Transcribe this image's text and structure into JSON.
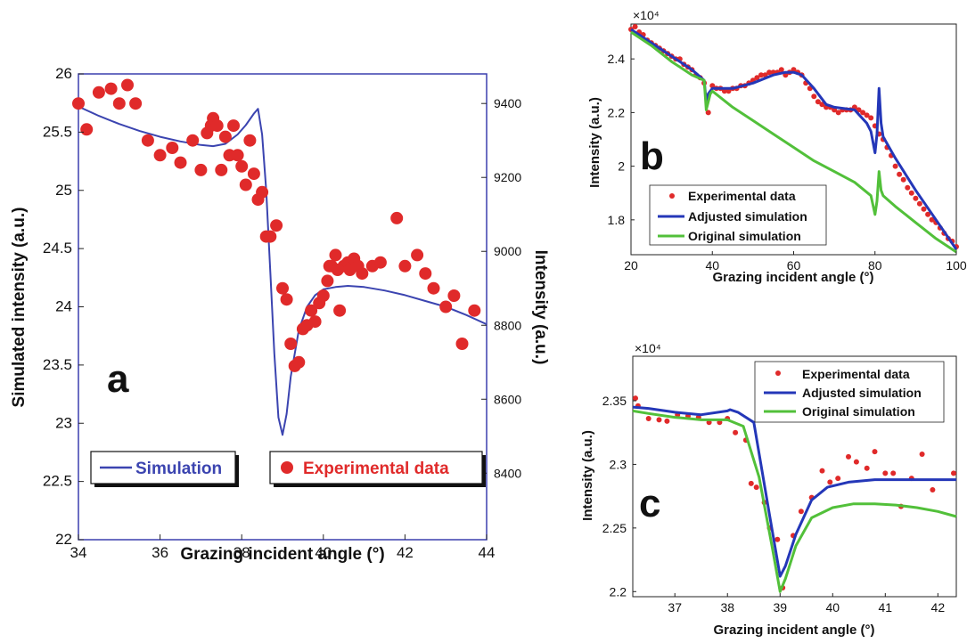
{
  "chart_data": [
    {
      "panel": "a",
      "type": "line+scatter",
      "xlabel": "Grazing incident angle (°)",
      "ylabel": "Simulated intensity (a.u.)",
      "y2label": "Intensity (a.u.)",
      "xlim": [
        34,
        44
      ],
      "ylim": [
        22,
        26
      ],
      "y2lim": [
        8220,
        9480
      ],
      "xticks": [
        34,
        36,
        38,
        40,
        42,
        44
      ],
      "yticks": [
        22,
        22.5,
        23,
        23.5,
        24,
        24.5,
        25,
        25.5,
        26
      ],
      "y2ticks": [
        8400,
        8600,
        8800,
        9000,
        9200,
        9400
      ],
      "legend": [
        "Simulation",
        "Experimental data"
      ],
      "colors": {
        "simulation": "#3b44b0",
        "experimental": "#e02a2a"
      },
      "series": [
        {
          "name": "Simulation",
          "axis": "left",
          "x": [
            34,
            34.5,
            35,
            35.5,
            36,
            36.5,
            37,
            37.3,
            37.6,
            37.9,
            38.1,
            38.3,
            38.4,
            38.5,
            38.6,
            38.7,
            38.8,
            38.9,
            39,
            39.1,
            39.2,
            39.4,
            39.6,
            39.8,
            40,
            40.3,
            40.6,
            41,
            41.5,
            42,
            42.5,
            43,
            43.5,
            44
          ],
          "y": [
            25.72,
            25.64,
            25.57,
            25.51,
            25.46,
            25.42,
            25.39,
            25.38,
            25.4,
            25.48,
            25.56,
            25.66,
            25.7,
            25.48,
            25.0,
            24.3,
            23.6,
            23.05,
            22.9,
            23.08,
            23.4,
            23.8,
            24.0,
            24.1,
            24.15,
            24.17,
            24.18,
            24.17,
            24.14,
            24.1,
            24.05,
            24.0,
            23.93,
            23.85
          ]
        },
        {
          "name": "Experimental data",
          "axis": "right",
          "x": [
            34,
            34.2,
            34.5,
            34.8,
            35.0,
            35.2,
            35.4,
            35.7,
            36.0,
            36.3,
            36.5,
            36.8,
            37.0,
            37.15,
            37.25,
            37.3,
            37.4,
            37.5,
            37.6,
            37.7,
            37.8,
            37.9,
            38.0,
            38.1,
            38.2,
            38.3,
            38.4,
            38.5,
            38.6,
            38.7,
            38.85,
            39.0,
            39.1,
            39.2,
            39.3,
            39.4,
            39.5,
            39.6,
            39.7,
            39.8,
            39.9,
            40.0,
            40.1,
            40.15,
            40.2,
            40.3,
            40.35,
            40.4,
            40.5,
            40.6,
            40.65,
            40.75,
            40.85,
            40.95,
            41.2,
            41.4,
            41.8,
            42.0,
            42.3,
            42.5,
            42.7,
            43.0,
            43.2,
            43.4,
            43.7
          ],
          "y": [
            9400,
            9330,
            9430,
            9440,
            9400,
            9450,
            9400,
            9300,
            9260,
            9280,
            9240,
            9300,
            9220,
            9320,
            9340,
            9360,
            9340,
            9220,
            9310,
            9260,
            9340,
            9260,
            9230,
            9180,
            9300,
            9210,
            9140,
            9160,
            9040,
            9040,
            9070,
            8900,
            8870,
            8750,
            8690,
            8700,
            8790,
            8800,
            8840,
            8810,
            8860,
            8880,
            8920,
            8960,
            8960,
            8990,
            8950,
            8840,
            8960,
            8970,
            8950,
            8980,
            8960,
            8940,
            8960,
            8970,
            9090,
            8960,
            8990,
            8940,
            8900,
            8850,
            8880,
            8750,
            8840
          ]
        }
      ],
      "annotation": "a"
    },
    {
      "panel": "b",
      "type": "line+scatter",
      "xlabel": "Grazing incident angle (°)",
      "ylabel": "Intensity (a.u.)",
      "scale_label": "×10⁴",
      "xlim": [
        20,
        100
      ],
      "ylim": [
        1.67,
        2.53
      ],
      "xticks": [
        20,
        40,
        60,
        80,
        100
      ],
      "yticks": [
        1.8,
        2,
        2.2,
        2.4
      ],
      "legend": [
        "Experimental data",
        "Adjusted simulation",
        "Original simulation"
      ],
      "colors": {
        "Experimental data": "#e02a2a",
        "Adjusted simulation": "#2437b8",
        "Original simulation": "#52c03a"
      },
      "series": [
        {
          "name": "Experimental data",
          "x": [
            20,
            21,
            22,
            23,
            24,
            25,
            26,
            27,
            28,
            29,
            30,
            31,
            32,
            33,
            34,
            35,
            36,
            37,
            38,
            39,
            40,
            41,
            42,
            43,
            44,
            45,
            46,
            47,
            48,
            49,
            50,
            51,
            52,
            53,
            54,
            55,
            56,
            57,
            58,
            59,
            60,
            61,
            62,
            63,
            64,
            65,
            66,
            67,
            68,
            69,
            70,
            71,
            72,
            73,
            74,
            75,
            76,
            77,
            78,
            79,
            80,
            81,
            82,
            83,
            84,
            85,
            86,
            87,
            88,
            89,
            90,
            91,
            92,
            93,
            94,
            95,
            96,
            97,
            98,
            99,
            100
          ],
          "y": [
            2.51,
            2.52,
            2.5,
            2.49,
            2.47,
            2.46,
            2.45,
            2.44,
            2.43,
            2.42,
            2.41,
            2.4,
            2.4,
            2.38,
            2.37,
            2.36,
            2.34,
            2.33,
            2.31,
            2.2,
            2.3,
            2.29,
            2.29,
            2.28,
            2.28,
            2.29,
            2.29,
            2.3,
            2.3,
            2.31,
            2.32,
            2.33,
            2.34,
            2.34,
            2.35,
            2.35,
            2.35,
            2.36,
            2.34,
            2.35,
            2.36,
            2.35,
            2.34,
            2.31,
            2.29,
            2.26,
            2.24,
            2.23,
            2.22,
            2.22,
            2.21,
            2.2,
            2.21,
            2.21,
            2.21,
            2.22,
            2.21,
            2.2,
            2.19,
            2.18,
            2.15,
            2.12,
            2.1,
            2.07,
            2.04,
            2.0,
            1.97,
            1.95,
            1.92,
            1.9,
            1.88,
            1.86,
            1.84,
            1.82,
            1.8,
            1.79,
            1.77,
            1.75,
            1.73,
            1.72,
            1.7
          ]
        },
        {
          "name": "Adjusted simulation",
          "x": [
            20,
            25,
            30,
            35,
            38,
            38.5,
            39,
            39.5,
            40,
            45,
            50,
            55,
            58,
            60,
            62,
            65,
            68,
            70,
            75,
            78,
            79,
            80,
            80.5,
            81,
            81.5,
            82,
            85,
            90,
            95,
            100
          ],
          "y": [
            2.51,
            2.46,
            2.41,
            2.36,
            2.32,
            2.24,
            2.27,
            2.28,
            2.29,
            2.29,
            2.31,
            2.34,
            2.35,
            2.35,
            2.34,
            2.29,
            2.23,
            2.22,
            2.21,
            2.16,
            2.13,
            2.05,
            2.12,
            2.29,
            2.16,
            2.11,
            2.03,
            1.91,
            1.8,
            1.69
          ]
        },
        {
          "name": "Original simulation",
          "x": [
            20,
            25,
            30,
            35,
            38,
            38.5,
            39,
            39.5,
            40,
            45,
            50,
            55,
            60,
            65,
            70,
            75,
            79,
            80,
            80.5,
            81,
            81.5,
            82,
            85,
            90,
            95,
            100
          ],
          "y": [
            2.5,
            2.45,
            2.39,
            2.34,
            2.32,
            2.21,
            2.24,
            2.27,
            2.28,
            2.22,
            2.17,
            2.12,
            2.07,
            2.02,
            1.98,
            1.94,
            1.89,
            1.82,
            1.87,
            1.98,
            1.91,
            1.89,
            1.85,
            1.79,
            1.73,
            1.68
          ]
        }
      ],
      "annotation": "b"
    },
    {
      "panel": "c",
      "type": "line+scatter",
      "xlabel": "Grazing incident angle (°)",
      "ylabel": "Intensity (a.u.)",
      "scale_label": "×10⁴",
      "xlim": [
        36.2,
        42.35
      ],
      "ylim": [
        2.196,
        2.385
      ],
      "xticks": [
        37,
        38,
        39,
        40,
        41,
        42
      ],
      "yticks": [
        2.2,
        2.25,
        2.3,
        2.35
      ],
      "legend": [
        "Experimental data",
        "Adjusted simulation",
        "Original simulation"
      ],
      "colors": {
        "Experimental data": "#e02a2a",
        "Adjusted simulation": "#2437b8",
        "Original simulation": "#52c03a"
      },
      "series": [
        {
          "name": "Experimental data",
          "x": [
            36.25,
            36.3,
            36.5,
            36.7,
            36.85,
            37.05,
            37.25,
            37.45,
            37.65,
            37.85,
            38.0,
            38.15,
            38.35,
            38.45,
            38.55,
            38.7,
            38.8,
            38.95,
            39.05,
            39.25,
            39.4,
            39.6,
            39.8,
            39.95,
            40.1,
            40.3,
            40.45,
            40.65,
            40.8,
            41.0,
            41.15,
            41.3,
            41.5,
            41.7,
            41.9,
            42.3
          ],
          "y": [
            2.352,
            2.346,
            2.336,
            2.335,
            2.334,
            2.339,
            2.338,
            2.337,
            2.333,
            2.333,
            2.336,
            2.325,
            2.319,
            2.285,
            2.282,
            2.27,
            2.25,
            2.241,
            2.203,
            2.244,
            2.263,
            2.274,
            2.295,
            2.286,
            2.289,
            2.306,
            2.302,
            2.297,
            2.31,
            2.293,
            2.293,
            2.267,
            2.289,
            2.308,
            2.28,
            2.293
          ]
        },
        {
          "name": "Adjusted simulation",
          "x": [
            36.2,
            36.5,
            37,
            37.5,
            38,
            38.05,
            38.2,
            38.5,
            38.8,
            39,
            39.1,
            39.3,
            39.6,
            39.9,
            40.3,
            40.8,
            41.3,
            41.8,
            42.35
          ],
          "y": [
            2.345,
            2.344,
            2.341,
            2.339,
            2.342,
            2.343,
            2.341,
            2.333,
            2.26,
            2.212,
            2.22,
            2.245,
            2.272,
            2.282,
            2.286,
            2.288,
            2.288,
            2.288,
            2.288
          ]
        },
        {
          "name": "Original simulation",
          "x": [
            36.2,
            36.5,
            37,
            37.5,
            38,
            38.3,
            38.6,
            38.85,
            39,
            39.1,
            39.3,
            39.6,
            40,
            40.4,
            40.8,
            41.2,
            41.6,
            42,
            42.35
          ],
          "y": [
            2.342,
            2.34,
            2.337,
            2.335,
            2.335,
            2.33,
            2.29,
            2.235,
            2.2,
            2.21,
            2.236,
            2.258,
            2.266,
            2.269,
            2.269,
            2.268,
            2.266,
            2.263,
            2.259
          ]
        }
      ],
      "annotation": "c"
    }
  ]
}
